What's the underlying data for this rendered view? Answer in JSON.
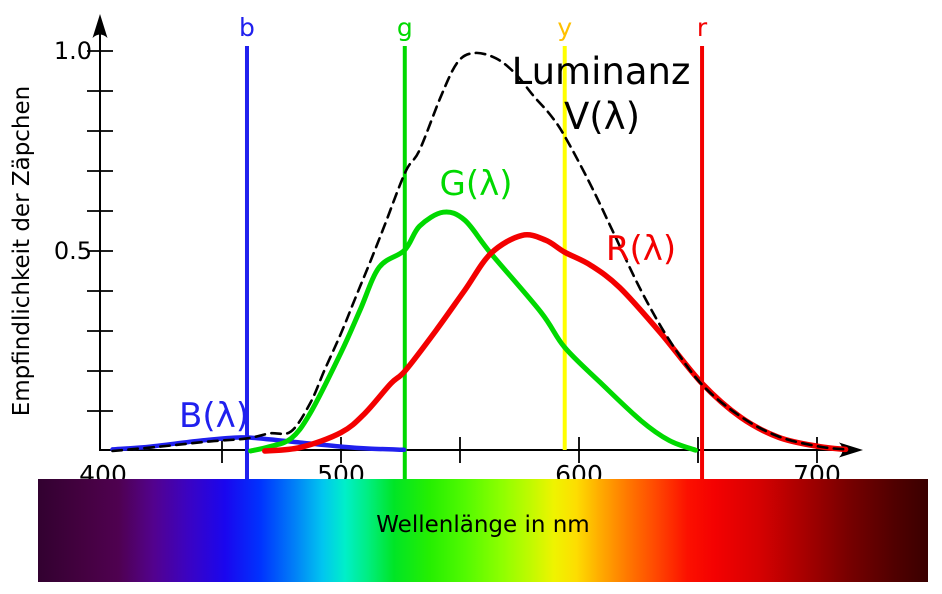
{
  "ui": {
    "y_axis_title": "Empfindlichkeit der Zäpchen",
    "labels": {
      "blue_curve": "B(λ)",
      "green_curve": "G(λ)",
      "red_curve": "R(λ)",
      "luminance_line1": "Luminanz",
      "luminance_line2": "V(λ)"
    }
  },
  "chart_data": {
    "type": "line",
    "title": "",
    "xlabel": "Wellenlänge in nm",
    "ylabel": "Empfindlichkeit der Zäpchen",
    "xlim": [
      398,
      716
    ],
    "ylim": [
      0,
      1.05
    ],
    "grid": false,
    "legend_position": "inline-annotations",
    "axis_color": "#000000",
    "x_ticks_labeled": [
      {
        "value": 400,
        "label": "400"
      },
      {
        "value": 500,
        "label": "500"
      },
      {
        "value": 600,
        "label": "600"
      },
      {
        "value": 700,
        "label": "700"
      }
    ],
    "x_ticks_minor": [
      450,
      550,
      650
    ],
    "y_ticks_labeled": [
      {
        "value": 0.5,
        "label": "0.5"
      },
      {
        "value": 1.0,
        "label": "1.0"
      }
    ],
    "y_ticks_minor": [
      0.1,
      0.2,
      0.3,
      0.4,
      0.6,
      0.7,
      0.8,
      0.9
    ],
    "series": [
      {
        "name": "B(λ)",
        "color": "#2020EE",
        "style": "solid",
        "points": [
          [
            404,
            0.004
          ],
          [
            420,
            0.011
          ],
          [
            441,
            0.026
          ],
          [
            458,
            0.034
          ],
          [
            470,
            0.029
          ],
          [
            483,
            0.021
          ],
          [
            500,
            0.011
          ],
          [
            512,
            0.006
          ],
          [
            526.5,
            0.003
          ]
        ]
      },
      {
        "name": "G(λ)",
        "color": "#00D900",
        "style": "solid",
        "points": [
          [
            462,
            0.0
          ],
          [
            470,
            0.011
          ],
          [
            479,
            0.031
          ],
          [
            487,
            0.094
          ],
          [
            500,
            0.246
          ],
          [
            508,
            0.352
          ],
          [
            516,
            0.459
          ],
          [
            526.7,
            0.502
          ],
          [
            533,
            0.562
          ],
          [
            543,
            0.597
          ],
          [
            552,
            0.577
          ],
          [
            563,
            0.494
          ],
          [
            584,
            0.347
          ],
          [
            594,
            0.259
          ],
          [
            609,
            0.171
          ],
          [
            626,
            0.076
          ],
          [
            638,
            0.026
          ],
          [
            649,
            0.002
          ]
        ]
      },
      {
        "name": "R(λ)",
        "color": "#F30000",
        "style": "solid",
        "points": [
          [
            468,
            0.0
          ],
          [
            483,
            0.009
          ],
          [
            500,
            0.046
          ],
          [
            510,
            0.094
          ],
          [
            521,
            0.169
          ],
          [
            527,
            0.201
          ],
          [
            540,
            0.302
          ],
          [
            552,
            0.402
          ],
          [
            563,
            0.494
          ],
          [
            576,
            0.539
          ],
          [
            586,
            0.527
          ],
          [
            594,
            0.497
          ],
          [
            605,
            0.464
          ],
          [
            617,
            0.409
          ],
          [
            634,
            0.297
          ],
          [
            651.7,
            0.169
          ],
          [
            668,
            0.084
          ],
          [
            684,
            0.034
          ],
          [
            701,
            0.011
          ],
          [
            712,
            0.004
          ]
        ]
      },
      {
        "name": "Luminanz V(λ)",
        "color": "#000000",
        "style": "dashed",
        "points": [
          [
            404,
            0.0
          ],
          [
            424,
            0.011
          ],
          [
            445,
            0.024
          ],
          [
            460,
            0.031
          ],
          [
            470,
            0.044
          ],
          [
            479,
            0.049
          ],
          [
            487,
            0.119
          ],
          [
            493,
            0.201
          ],
          [
            500,
            0.294
          ],
          [
            506,
            0.382
          ],
          [
            512,
            0.469
          ],
          [
            518,
            0.559
          ],
          [
            527,
            0.697
          ],
          [
            533,
            0.752
          ],
          [
            542,
            0.887
          ],
          [
            549,
            0.972
          ],
          [
            556,
            0.995
          ],
          [
            565,
            0.982
          ],
          [
            573,
            0.945
          ],
          [
            581,
            0.887
          ],
          [
            588,
            0.84
          ],
          [
            594,
            0.787
          ],
          [
            605,
            0.664
          ],
          [
            614,
            0.552
          ],
          [
            626,
            0.402
          ],
          [
            638,
            0.277
          ],
          [
            651.7,
            0.166
          ],
          [
            668,
            0.086
          ],
          [
            684,
            0.036
          ],
          [
            701,
            0.011
          ],
          [
            712,
            0.004
          ]
        ]
      }
    ],
    "primary_lines": [
      {
        "label": "b",
        "wavelength_nm": 460.5,
        "color": "#2020EE",
        "label_color": "#2020EE",
        "extends_below_axis": true
      },
      {
        "label": "g",
        "wavelength_nm": 526.8,
        "color": "#00D900",
        "label_color": "#00D900",
        "extends_below_axis": true
      },
      {
        "label": "y",
        "wavelength_nm": 594.0,
        "color": "#FFFF00",
        "label_color": "#FFC000",
        "extends_below_axis": false
      },
      {
        "label": "r",
        "wavelength_nm": 651.7,
        "color": "#F30000",
        "label_color": "#F30000",
        "extends_below_axis": true
      }
    ],
    "spectrum_bar": {
      "label": "Wellenlänge in nm",
      "label_color": "#000000",
      "range_nm": [
        373,
        747
      ],
      "gradient_stops": [
        [
          0,
          "#320130"
        ],
        [
          5,
          "#440140"
        ],
        [
          9,
          "#4F0150"
        ],
        [
          13,
          "#53028E"
        ],
        [
          17,
          "#3A03C4"
        ],
        [
          21,
          "#1A06EE"
        ],
        [
          25,
          "#0033FE"
        ],
        [
          29,
          "#0183F7"
        ],
        [
          32,
          "#01C6EF"
        ],
        [
          34.5,
          "#00EFC9"
        ],
        [
          37,
          "#00EE83"
        ],
        [
          40,
          "#00E526"
        ],
        [
          44,
          "#25EF01"
        ],
        [
          48,
          "#52FA01"
        ],
        [
          52,
          "#8CFF00"
        ],
        [
          55.5,
          "#C3FA00"
        ],
        [
          58,
          "#EFF300"
        ],
        [
          60.5,
          "#FDDD01"
        ],
        [
          63,
          "#FFAE00"
        ],
        [
          66,
          "#FF7C00"
        ],
        [
          69.5,
          "#FF4701"
        ],
        [
          73,
          "#FC1000"
        ],
        [
          76,
          "#F40101"
        ],
        [
          81,
          "#D60101"
        ],
        [
          86,
          "#A80000"
        ],
        [
          91,
          "#780000"
        ],
        [
          96,
          "#520000"
        ],
        [
          100,
          "#3A0000"
        ]
      ]
    }
  }
}
